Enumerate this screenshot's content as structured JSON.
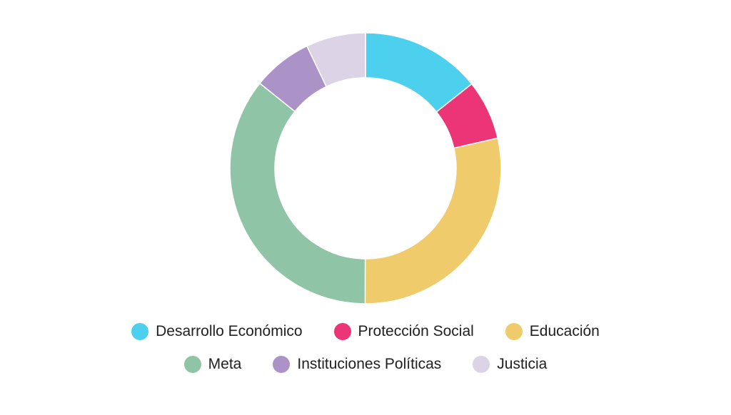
{
  "chart_data": {
    "type": "pie",
    "variant": "donut",
    "title": "",
    "categories": [
      "Desarrollo Económico",
      "Protección Social",
      "Educación",
      "Meta",
      "Instituciones Políticas",
      "Justicia"
    ],
    "values": [
      14.3,
      7.1,
      28.6,
      35.7,
      7.1,
      7.1
    ],
    "colors": [
      "#4dd0ed",
      "#ec3577",
      "#efcb6b",
      "#8fc4a7",
      "#ab93c8",
      "#dcd3e6"
    ],
    "legend_position": "bottom",
    "legend_rows": [
      [
        0,
        1,
        2
      ],
      [
        3,
        4,
        5
      ]
    ]
  }
}
